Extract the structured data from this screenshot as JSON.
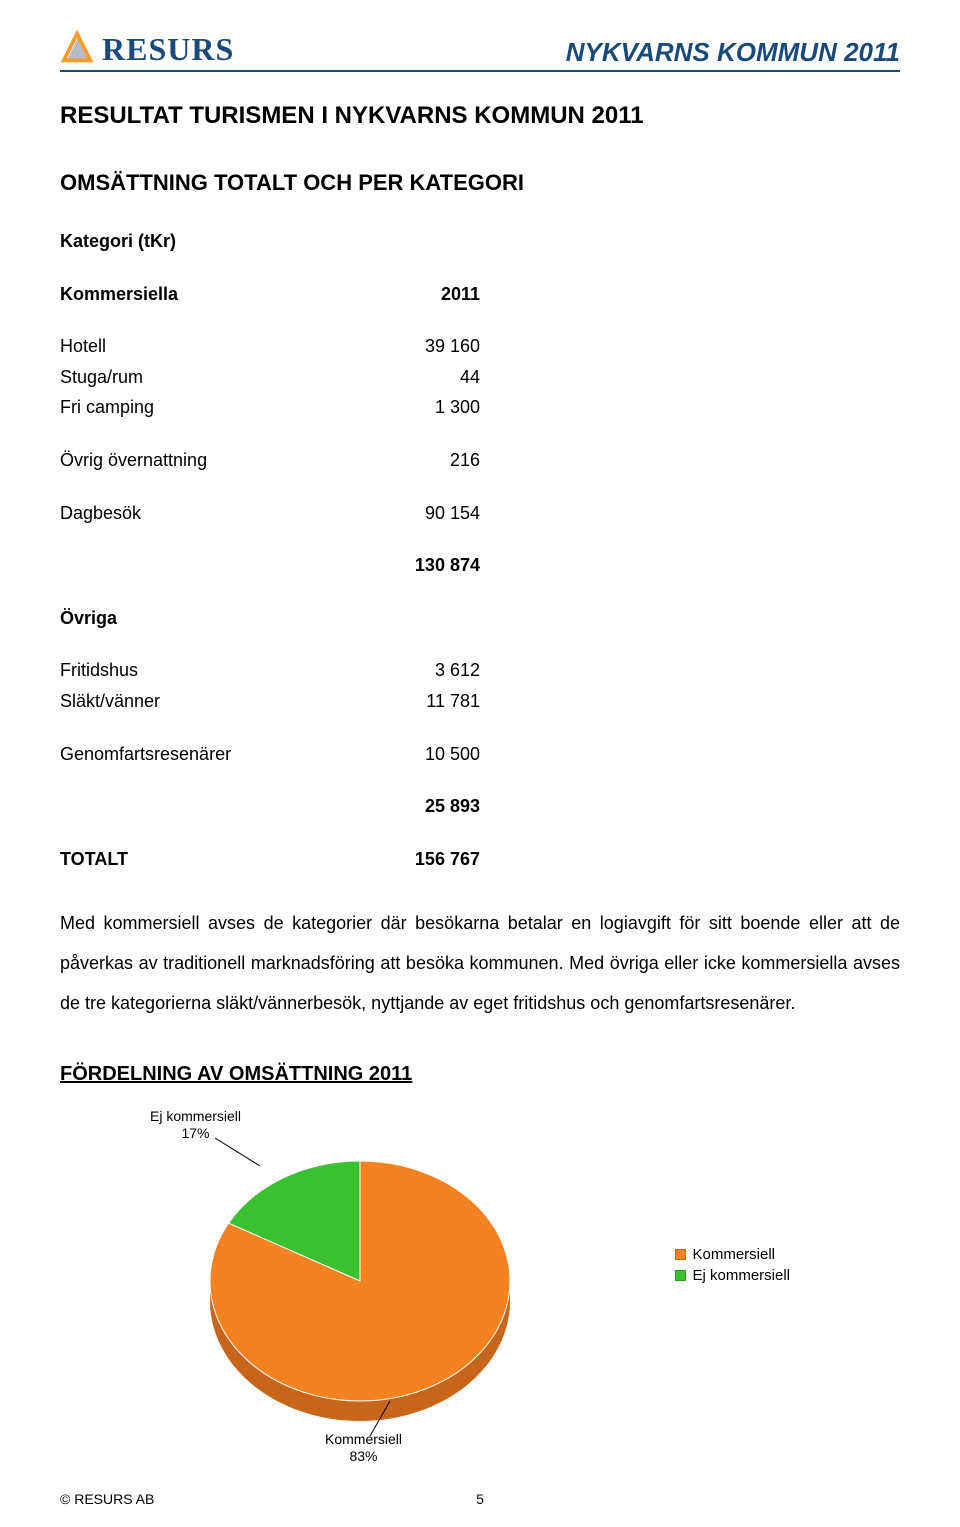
{
  "header": {
    "logo_text": "RESURS",
    "right_title": "NYKVARNS KOMMUN 2011",
    "logo_colors": {
      "triangle": "#f39c2b",
      "shadow": "#6b7a8f"
    },
    "rule_color": "#1a4a7a",
    "title_color": "#1a4a7a"
  },
  "section_title": "RESULTAT TURISMEN I NYKVARNS KOMMUN 2011",
  "subsection_title": "OMSÄTTNING TOTALT OCH PER KATEGORI",
  "table": {
    "header_label": "Kategori (tKr)",
    "group1_label": "Kommersiella",
    "group1_year": "2011",
    "rows1": [
      {
        "label": "Hotell",
        "value": "39 160"
      },
      {
        "label": "Stuga/rum",
        "value": "44"
      },
      {
        "label": "Fri camping",
        "value": "1 300"
      }
    ],
    "ovrig_label": "Övrig övernattning",
    "ovrig_value": "216",
    "dagbesok_label": "Dagbesök",
    "dagbesok_value": "90 154",
    "subtotal1": "130 874",
    "group2_label": "Övriga",
    "rows2": [
      {
        "label": "Fritidshus",
        "value": "3 612"
      },
      {
        "label": "Släkt/vänner",
        "value": "11 781"
      }
    ],
    "genomfarts_label": "Genomfartsresenärer",
    "genomfarts_value": "10 500",
    "subtotal2": "25 893",
    "total_label": "TOTALT",
    "total_value": "156 767"
  },
  "paragraph": "Med kommersiell avses de kategorier där besökarna betalar en logiavgift för sitt boende eller att de påverkas av traditionell marknadsföring att besöka kommunen. Med övriga eller icke kommersiella avses de tre kategorierna släkt/vännerbesök, nyttjande av eget fritidshus och genomfartsresenärer.",
  "chart": {
    "title": "FÖRDELNING AV OMSÄTTNING  2011",
    "type": "pie",
    "slices": [
      {
        "label": "Kommersiell",
        "pct": 83,
        "color": "#f58220",
        "label_text": "Kommersiell\n83%"
      },
      {
        "label": "Ej kommersiell",
        "pct": 17,
        "color": "#3ac12f",
        "label_text": "Ej kommersiell\n17%"
      }
    ],
    "legend": [
      {
        "label": "Kommersiell",
        "color": "#f58220"
      },
      {
        "label": "Ej kommersiell",
        "color": "#3ac12f"
      }
    ],
    "center_shade": "#c7651a",
    "background": "#ffffff"
  },
  "footer": {
    "left": "© RESURS AB",
    "page": "5"
  }
}
